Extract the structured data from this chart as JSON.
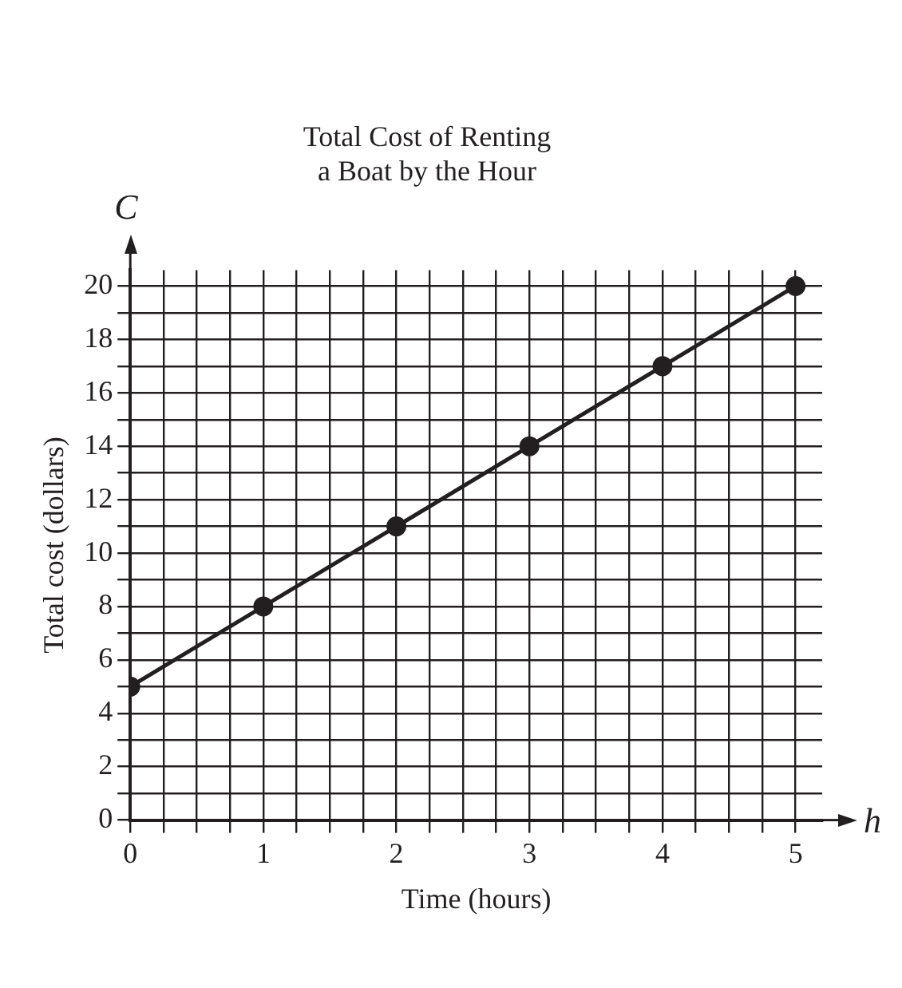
{
  "chart_data": {
    "type": "line",
    "title": [
      "Total Cost of Renting",
      "a Boat by the Hour"
    ],
    "xlabel": "Time (hours)",
    "ylabel": "Total cost (dollars)",
    "x": [
      0,
      1,
      2,
      3,
      4,
      5
    ],
    "series": [
      {
        "color": "#231f20",
        "values": [
          5,
          8,
          11,
          14,
          17,
          20
        ]
      }
    ],
    "xlim": [
      0,
      5.2
    ],
    "ylim": [
      0,
      20.6
    ],
    "xticks": [
      0,
      {
        "value": 0.25,
        "label": null
      },
      {
        "value": 0.5,
        "label": null
      },
      {
        "value": 0.75,
        "label": null
      },
      1,
      {
        "value": 1.25,
        "label": null
      },
      {
        "value": 1.5,
        "label": null
      },
      {
        "value": 1.75,
        "label": null
      },
      2,
      {
        "value": 2.25,
        "label": null
      },
      {
        "value": 2.5,
        "label": null
      },
      {
        "value": 2.75,
        "label": null
      },
      3,
      {
        "value": 3.25,
        "label": null
      },
      {
        "value": 3.5,
        "label": null
      },
      {
        "value": 3.75,
        "label": null
      },
      4,
      {
        "value": 4.25,
        "label": null
      },
      {
        "value": 4.5,
        "label": null
      },
      {
        "value": 4.75,
        "label": null
      },
      5
    ],
    "yticks": [
      0,
      {
        "value": 1,
        "label": null
      },
      2,
      {
        "value": 3,
        "label": null
      },
      4,
      {
        "value": 5,
        "label": null
      },
      6,
      {
        "value": 7,
        "label": null
      },
      8,
      {
        "value": 9,
        "label": null
      },
      10,
      {
        "value": 11,
        "label": null
      },
      12,
      {
        "value": 13,
        "label": null
      },
      14,
      {
        "value": 15,
        "label": null
      },
      16,
      {
        "value": 17,
        "label": null
      },
      18,
      {
        "value": 19,
        "label": null
      },
      20
    ],
    "grid": true,
    "legend": false,
    "marker": "circle",
    "line_style": "solid",
    "annotations": [
      "C",
      "h"
    ]
  }
}
